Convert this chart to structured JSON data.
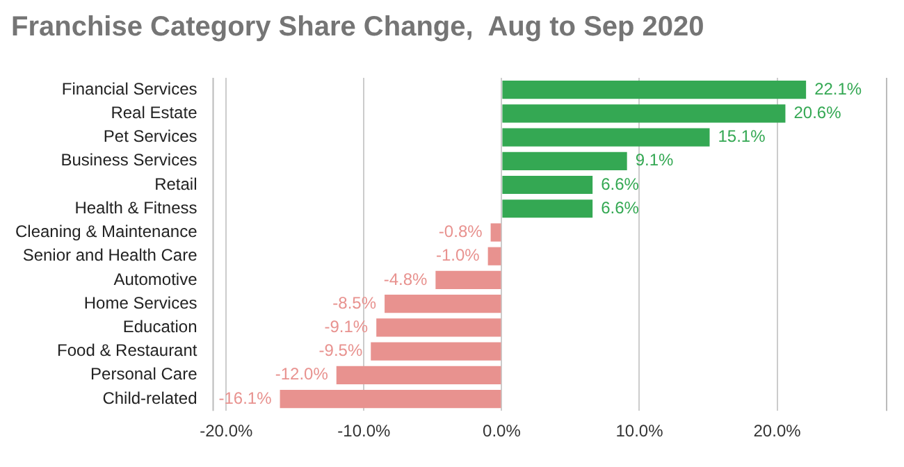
{
  "chart_data": {
    "type": "bar",
    "orientation": "horizontal",
    "title": "Franchise Category Share Change,  Aug to Sep 2020",
    "categories": [
      "Financial Services",
      "Real Estate",
      "Pet Services",
      "Business Services",
      "Retail",
      "Health & Fitness",
      "Cleaning & Maintenance",
      "Senior and Health Care",
      "Automotive",
      "Home Services",
      "Education",
      "Food & Restaurant",
      "Personal Care",
      "Child-related"
    ],
    "values": [
      22.1,
      20.6,
      15.1,
      9.1,
      6.6,
      6.6,
      -0.8,
      -1.0,
      -4.8,
      -8.5,
      -9.1,
      -9.5,
      -12.0,
      -16.1
    ],
    "colors": [
      "#34a853",
      "#34a853",
      "#34a853",
      "#34a853",
      "#34a853",
      "#34a853",
      "#e8928f",
      "#e8928f",
      "#e8928f",
      "#e8928f",
      "#e8928f",
      "#e8928f",
      "#e8928f",
      "#e8928f"
    ],
    "value_labels": [
      "22.1%",
      "20.6%",
      "15.1%",
      "9.1%",
      "6.6%",
      "6.6%",
      "-0.8%",
      "-1.0%",
      "-4.8%",
      "-8.5%",
      "-9.1%",
      "-9.5%",
      "-12.0%",
      "-16.1%"
    ],
    "xlim": [
      -21,
      28
    ],
    "xticks": [
      {
        "value": -20,
        "label": "-20.0%"
      },
      {
        "value": -10,
        "label": "-10.0%"
      },
      {
        "value": 0,
        "label": "0.0%"
      },
      {
        "value": 10,
        "label": "10.0%"
      },
      {
        "value": 20,
        "label": "20.0%"
      }
    ],
    "grid": "x"
  }
}
